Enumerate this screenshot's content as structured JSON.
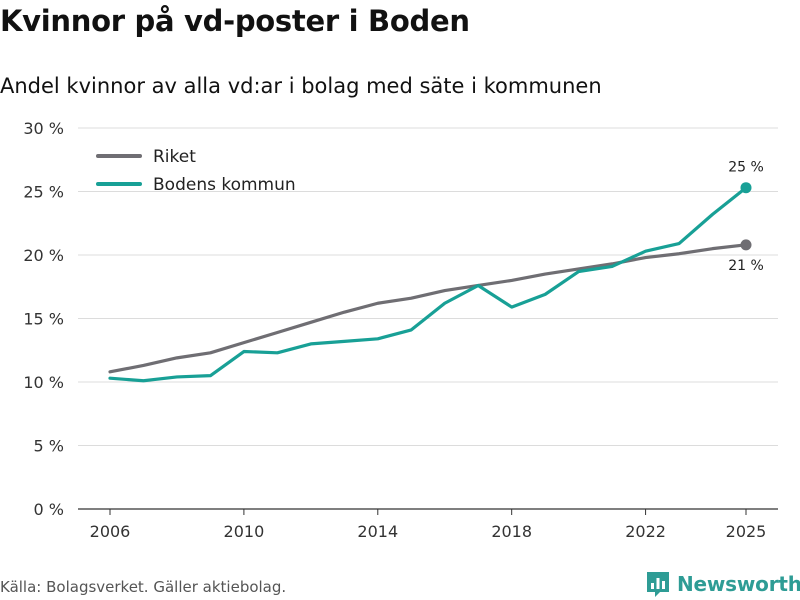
{
  "header": {
    "title": "Kvinnor på vd-poster i Boden",
    "subtitle": "Andel kvinnor av alla vd:ar i bolag med säte i kommunen"
  },
  "chart_data": {
    "type": "line",
    "x": [
      2006,
      2007,
      2008,
      2009,
      2010,
      2011,
      2012,
      2013,
      2014,
      2015,
      2016,
      2017,
      2018,
      2019,
      2020,
      2021,
      2022,
      2023,
      2024,
      2025
    ],
    "series": [
      {
        "name": "Riket",
        "color": "#6f6e73",
        "values": [
          10.8,
          11.3,
          11.9,
          12.3,
          13.1,
          13.9,
          14.7,
          15.5,
          16.2,
          16.6,
          17.2,
          17.6,
          18.0,
          18.5,
          18.9,
          19.3,
          19.8,
          20.1,
          20.5,
          20.8
        ]
      },
      {
        "name": "Bodens kommun",
        "color": "#18a096",
        "values": [
          10.3,
          10.1,
          10.4,
          10.5,
          12.4,
          12.3,
          13.0,
          13.2,
          13.4,
          14.1,
          16.2,
          17.6,
          15.9,
          16.9,
          18.7,
          19.1,
          20.3,
          20.9,
          23.2,
          25.3
        ]
      }
    ],
    "end_labels": [
      {
        "series": "Bodens kommun",
        "text": "25 %"
      },
      {
        "series": "Riket",
        "text": "21 %"
      }
    ],
    "xticks": [
      2006,
      2010,
      2014,
      2018,
      2022,
      2025
    ],
    "yticks": [
      0,
      5,
      10,
      15,
      20,
      25,
      30
    ],
    "ytick_labels": [
      "0 %",
      "5 %",
      "10 %",
      "15 %",
      "20 %",
      "25 %",
      "30 %"
    ],
    "ylim": [
      0,
      30
    ],
    "xlim": [
      2006,
      2025
    ],
    "grid": true,
    "legend_position": "top-left",
    "xlabel": "",
    "ylabel": ""
  },
  "footer": {
    "source": "Källa: Bolagsverket. Gäller aktiebolag.",
    "brand": "Newsworthy",
    "brand_color": "#2e9c95"
  }
}
